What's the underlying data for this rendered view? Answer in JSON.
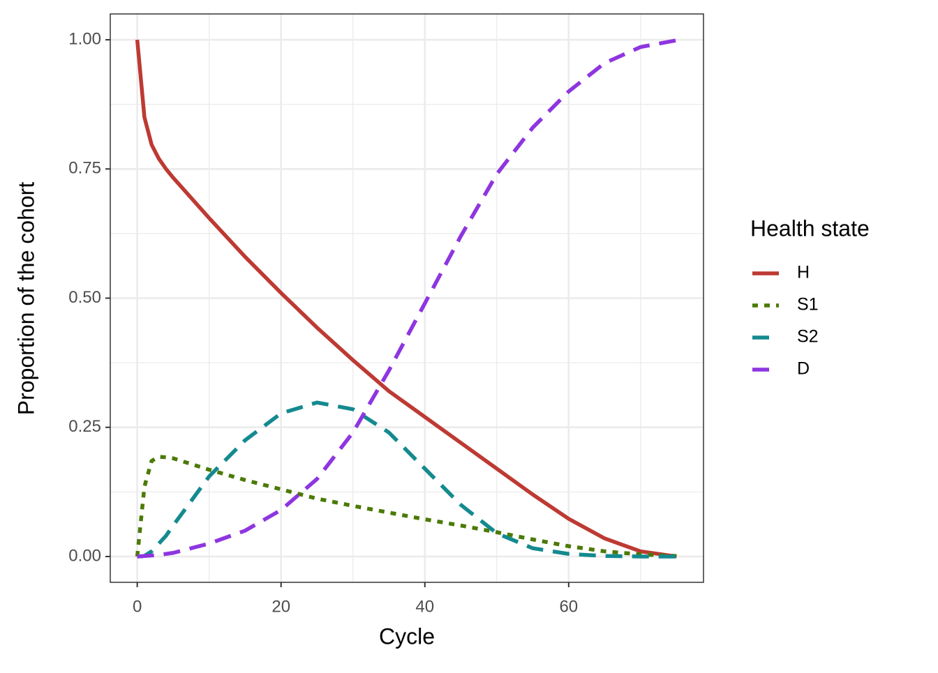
{
  "chart_data": {
    "type": "line",
    "x_label": "Cycle",
    "y_label": "Proportion of the cohort",
    "legend_title": "Health state",
    "legend_position": "right",
    "x": [
      0,
      1,
      2,
      3,
      4,
      5,
      10,
      15,
      20,
      25,
      30,
      35,
      40,
      45,
      50,
      55,
      60,
      65,
      70,
      75
    ],
    "series": [
      {
        "name": "H",
        "color": "#bd3a33",
        "dash": "solid",
        "values": [
          1.0,
          0.85,
          0.797,
          0.77,
          0.75,
          0.733,
          0.655,
          0.58,
          0.51,
          0.443,
          0.38,
          0.32,
          0.27,
          0.22,
          0.17,
          0.12,
          0.073,
          0.035,
          0.01,
          0.0
        ]
      },
      {
        "name": "S1",
        "color": "#4b7a06",
        "dash": "dotted",
        "values": [
          0,
          0.135,
          0.185,
          0.193,
          0.192,
          0.19,
          0.168,
          0.148,
          0.13,
          0.112,
          0.098,
          0.085,
          0.072,
          0.06,
          0.047,
          0.033,
          0.02,
          0.01,
          0.004,
          0.001
        ]
      },
      {
        "name": "S2",
        "color": "#148a8f",
        "dash": "dashed",
        "values": [
          0,
          0.001,
          0.01,
          0.025,
          0.04,
          0.06,
          0.155,
          0.225,
          0.277,
          0.298,
          0.285,
          0.24,
          0.17,
          0.1,
          0.045,
          0.016,
          0.005,
          0.001,
          0.0,
          0.0
        ]
      },
      {
        "name": "D",
        "color": "#8e35e0",
        "dash": "dashed",
        "values": [
          0,
          0.001,
          0.002,
          0.003,
          0.005,
          0.007,
          0.025,
          0.05,
          0.09,
          0.15,
          0.24,
          0.36,
          0.49,
          0.62,
          0.74,
          0.83,
          0.9,
          0.955,
          0.986,
          0.999
        ]
      }
    ],
    "xlim": [
      -3.75,
      78.75
    ],
    "ylim": [
      -0.05,
      1.05
    ],
    "xticks": [
      0,
      20,
      40,
      60
    ],
    "yticks": [
      {
        "value": 0,
        "label": "0.00"
      },
      {
        "value": 0.25,
        "label": "0.25"
      },
      {
        "value": 0.5,
        "label": "0.50"
      },
      {
        "value": 0.75,
        "label": "0.75"
      },
      {
        "value": 1,
        "label": "1.00"
      }
    ],
    "xminor": [
      10,
      30,
      50,
      70
    ],
    "yminor": [
      0.125,
      0.375,
      0.625,
      0.875
    ],
    "grid": true
  }
}
